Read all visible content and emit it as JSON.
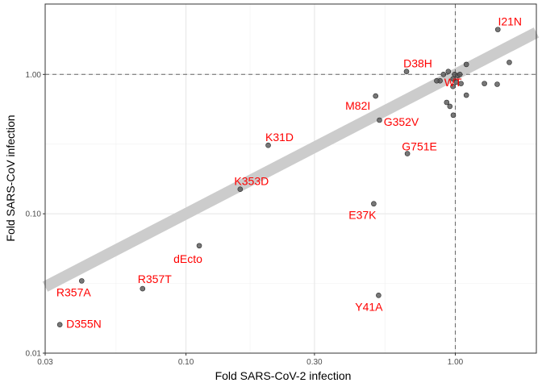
{
  "chart_data": {
    "type": "scatter",
    "xlabel": "Fold SARS-CoV-2 infection",
    "ylabel": "Fold SARS-CoV infection",
    "x_scale": "log10",
    "y_scale": "log10",
    "xlim": [
      0.03,
      2.0
    ],
    "ylim": [
      0.01,
      3.2
    ],
    "x_ticks": [
      {
        "value": 0.03,
        "label": "0.03"
      },
      {
        "value": 0.1,
        "label": "0.10"
      },
      {
        "value": 0.3,
        "label": "0.30"
      },
      {
        "value": 1.0,
        "label": "1.00"
      }
    ],
    "y_ticks": [
      {
        "value": 0.01,
        "label": "0.01"
      },
      {
        "value": 0.1,
        "label": "0.10"
      },
      {
        "value": 1.0,
        "label": "1.00"
      }
    ],
    "x_minor_ticks": [
      0.055,
      0.173,
      0.548
    ],
    "y_minor_ticks": [
      0.0316,
      0.316
    ],
    "reference_lines": {
      "x": 1.0,
      "y": 1.0,
      "style": "dashed"
    },
    "trend_line": {
      "x": [
        0.03,
        2.0
      ],
      "y": [
        0.03,
        2.0
      ],
      "color": "#cccccc"
    },
    "grid": true,
    "point_color": "#555555",
    "label_color": "#ff0000",
    "points": [
      {
        "x": 0.034,
        "y": 0.016,
        "label": "D355N"
      },
      {
        "x": 0.041,
        "y": 0.033,
        "label": "R357A"
      },
      {
        "x": 0.069,
        "y": 0.029,
        "label": "R357T"
      },
      {
        "x": 0.112,
        "y": 0.059,
        "label": "dEcto"
      },
      {
        "x": 0.159,
        "y": 0.15,
        "label": "K353D"
      },
      {
        "x": 0.202,
        "y": 0.31,
        "label": "K31D"
      },
      {
        "x": 0.498,
        "y": 0.118,
        "label": "E37K"
      },
      {
        "x": 0.519,
        "y": 0.026,
        "label": "Y41A"
      },
      {
        "x": 0.506,
        "y": 0.7,
        "label": "M82I"
      },
      {
        "x": 0.523,
        "y": 0.47,
        "label": "G352V"
      },
      {
        "x": 0.664,
        "y": 0.27,
        "label": "G751E"
      },
      {
        "x": 0.659,
        "y": 1.05,
        "label": "D38H"
      },
      {
        "x": 1.439,
        "y": 2.1,
        "label": "I21N"
      },
      {
        "x": 0.878,
        "y": 0.9,
        "label": "WT"
      },
      {
        "x": 0.853,
        "y": 0.9,
        "label": ""
      },
      {
        "x": 0.904,
        "y": 1.0,
        "label": ""
      },
      {
        "x": 0.942,
        "y": 1.05,
        "label": ""
      },
      {
        "x": 0.994,
        "y": 1.0,
        "label": ""
      },
      {
        "x": 1.022,
        "y": 0.98,
        "label": ""
      },
      {
        "x": 1.04,
        "y": 1.0,
        "label": ""
      },
      {
        "x": 1.01,
        "y": 0.88,
        "label": ""
      },
      {
        "x": 0.981,
        "y": 0.93,
        "label": ""
      },
      {
        "x": 0.98,
        "y": 0.82,
        "label": ""
      },
      {
        "x": 1.05,
        "y": 0.86,
        "label": ""
      },
      {
        "x": 0.929,
        "y": 0.63,
        "label": ""
      },
      {
        "x": 0.955,
        "y": 0.59,
        "label": ""
      },
      {
        "x": 0.983,
        "y": 0.51,
        "label": ""
      },
      {
        "x": 1.099,
        "y": 0.71,
        "label": ""
      },
      {
        "x": 1.099,
        "y": 1.18,
        "label": ""
      },
      {
        "x": 1.283,
        "y": 0.86,
        "label": ""
      },
      {
        "x": 1.431,
        "y": 0.85,
        "label": ""
      },
      {
        "x": 1.587,
        "y": 1.22,
        "label": ""
      }
    ]
  }
}
